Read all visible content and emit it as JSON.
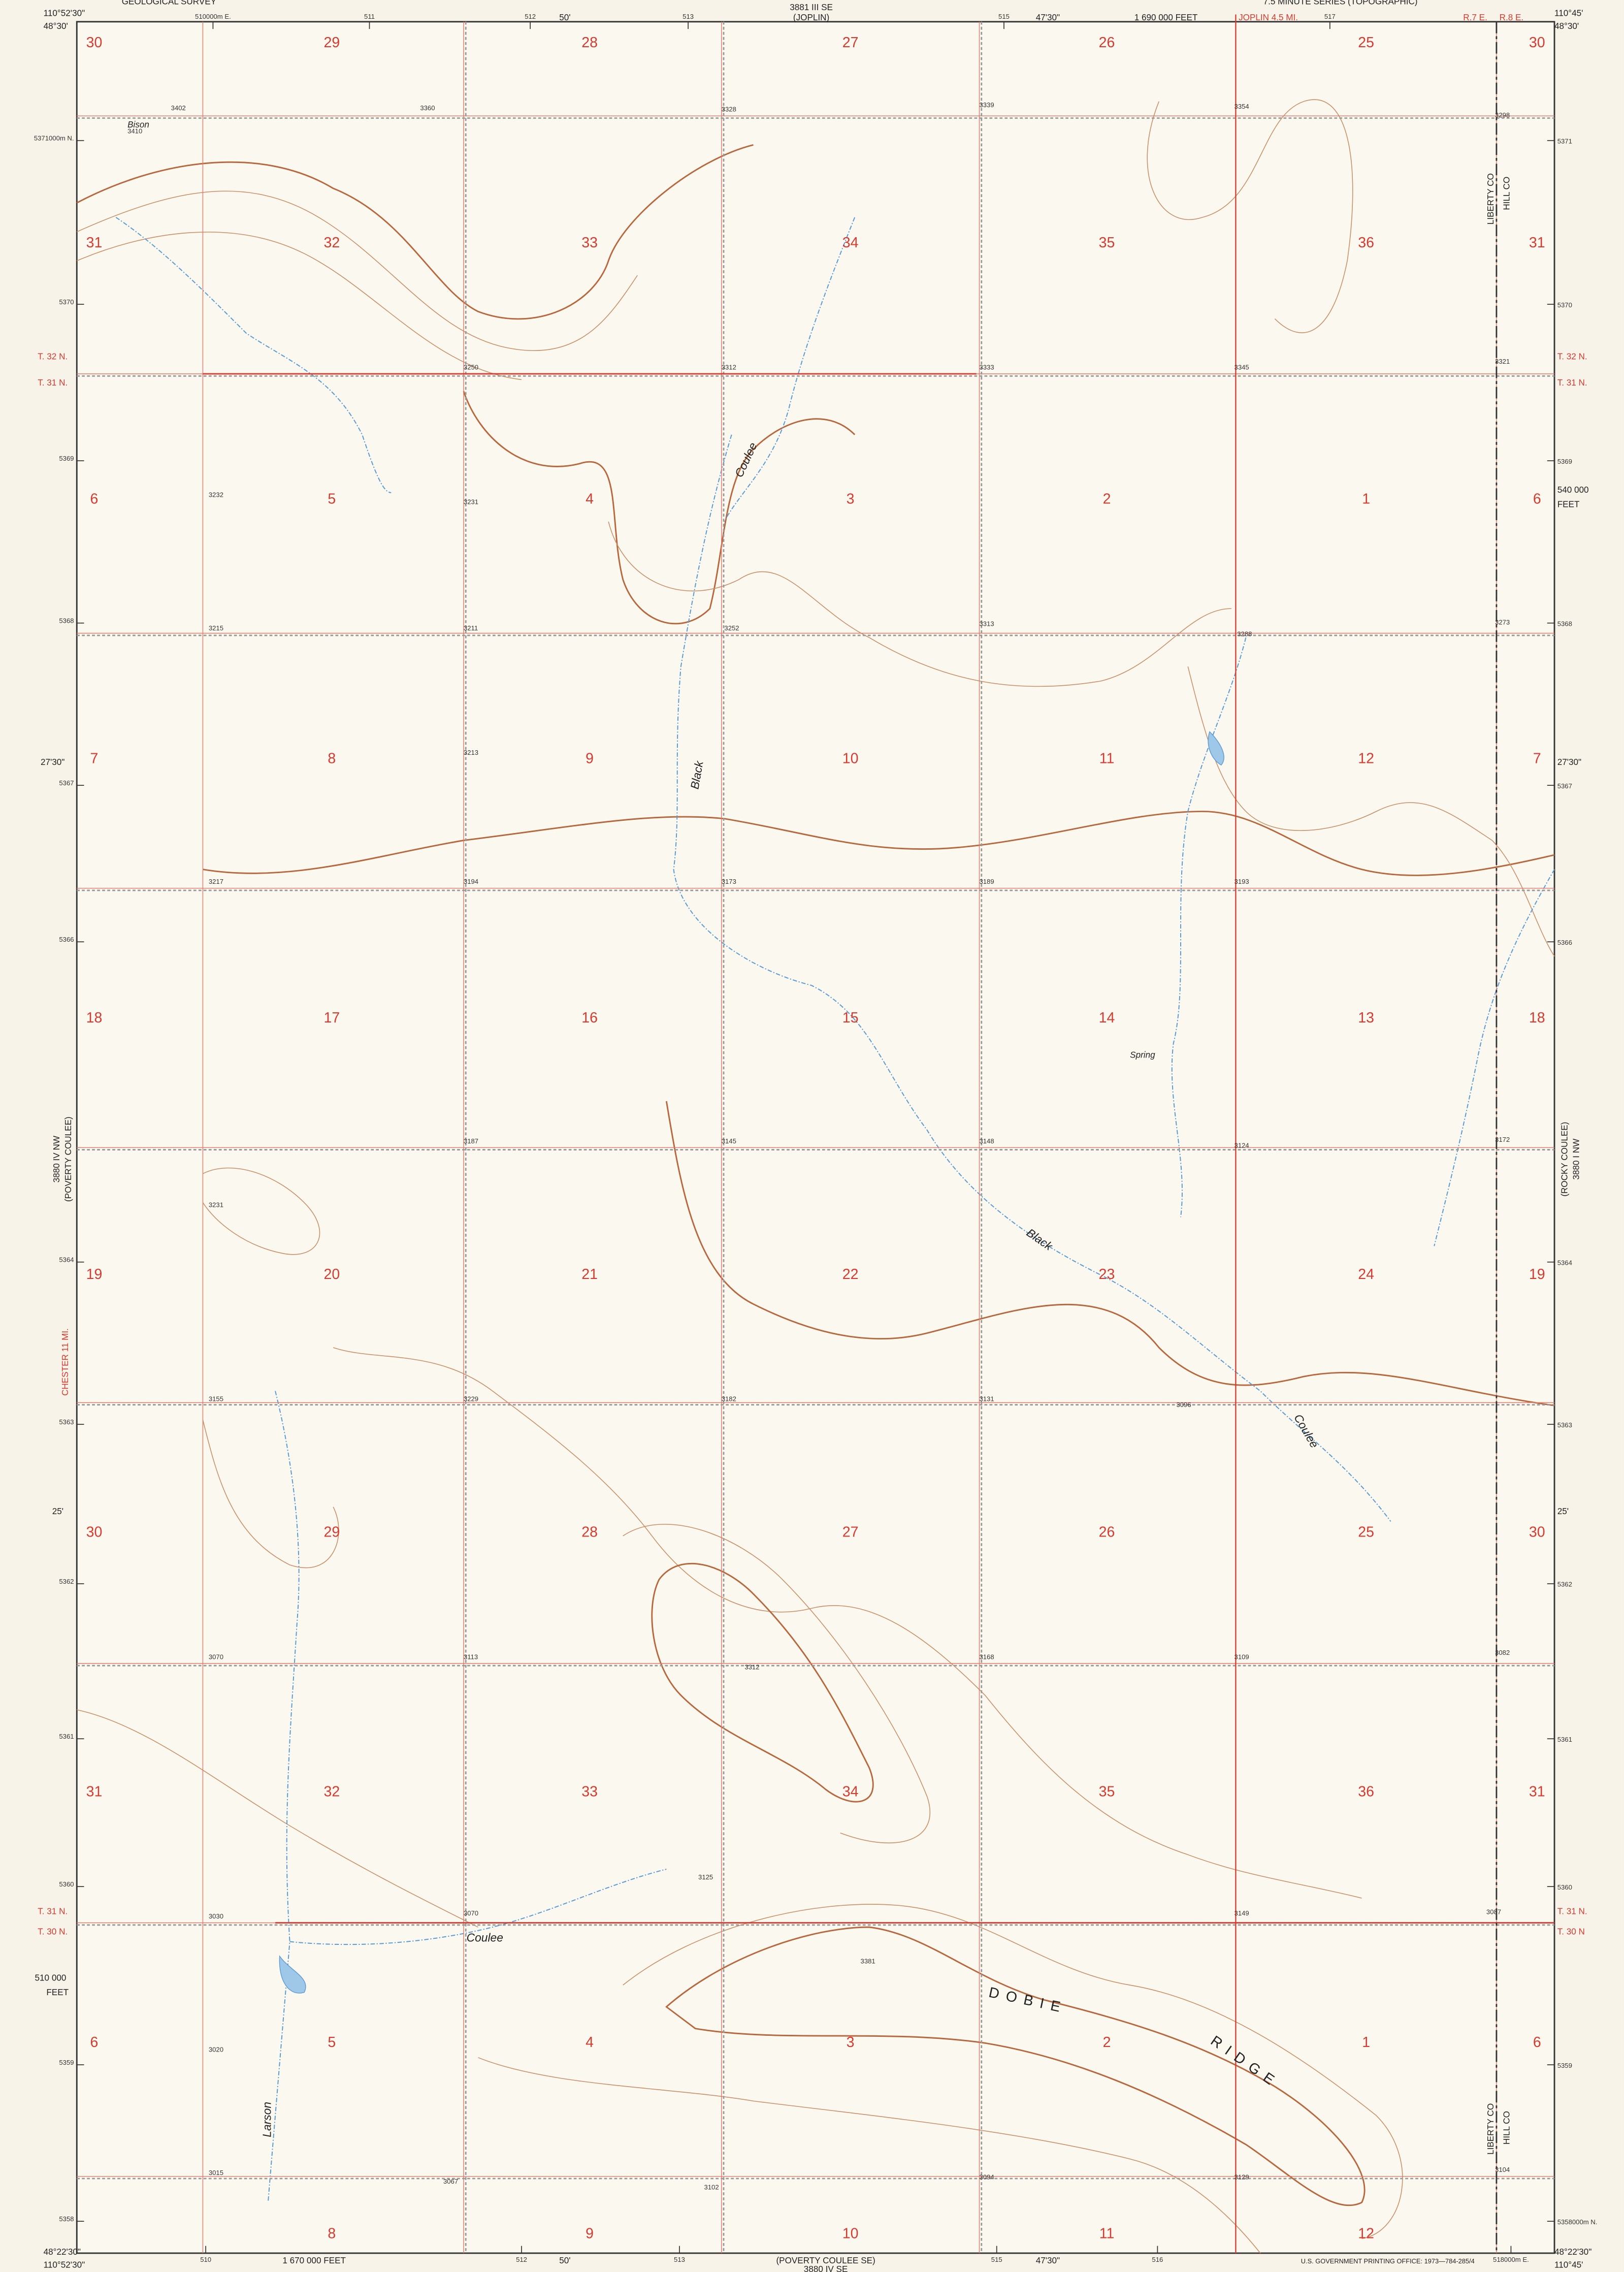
{
  "header": {
    "agency": "GEOLOGICAL SURVEY",
    "series": "7.5 MINUTE SERIES (TOPOGRAPHIC)"
  },
  "corners": {
    "nw_lon": "110°52'30\"",
    "nw_lat": "48°30'",
    "ne_lon": "110°45'",
    "ne_lat": "48°30'",
    "sw_lon": "110°52'30\"",
    "sw_lat": "48°22'30\"",
    "se_lon": "110°45'",
    "se_lat": "48°22'30\""
  },
  "margins": {
    "top_adjoining": "3881 III SE",
    "top_adjoining_name": "(JOPLIN)",
    "top_minute": "47'30\"",
    "top_mid_minute": "50'",
    "top_feet": "1 690 000 FEET",
    "top_road": "JOPLIN 4.5 MI.",
    "range_left": "R.7 E.",
    "range_right": "R.8 E.",
    "top_utm": [
      "510000m E.",
      "511",
      "512",
      "513",
      "515",
      "517"
    ],
    "bottom_utm": [
      "510",
      "512",
      "513",
      "515",
      "516",
      "518000m E."
    ],
    "bottom_minute": "47'30\"",
    "bottom_mid_minute": "50'",
    "bottom_feet": "1 670 000 FEET",
    "bottom_adjoining_name": "(POVERTY COULEE SE)",
    "bottom_adjoining": "3880 IV SE",
    "printing": "U.S. GOVERNMENT PRINTING OFFICE: 1973—784-285/4",
    "left_utm": [
      "5371000m N.",
      "5370",
      "5369",
      "5368",
      "5367",
      "5366",
      "5364",
      "5363",
      "5362",
      "5361",
      "5360",
      "5359",
      "5358"
    ],
    "right_utm": [
      "5371",
      "5370",
      "5369",
      "5368",
      "5367",
      "5366",
      "5364",
      "5363",
      "5362",
      "5361",
      "5360",
      "5359",
      "5358000m N."
    ],
    "left_lat_mid": "27'30\"",
    "left_lat_low": "25'",
    "right_lat_mid": "27'30\"",
    "right_lat_low": "25'",
    "right_feet": "540 000",
    "right_feet_unit": "FEET",
    "left_feet": "510 000",
    "left_feet_unit": "FEET",
    "left_adjoining": "3880 IV NW",
    "left_adjoining_name": "(POVERTY COULEE)",
    "right_adjoining": "3880 I NW",
    "right_adjoining_name": "(ROCKY COULEE)",
    "left_road": "CHESTER 11 MI.",
    "townships_left": [
      "T. 32 N.",
      "T. 31 N.",
      "T. 31 N.",
      "T. 30 N."
    ],
    "townships_right": [
      "T. 32 N.",
      "T. 31 N.",
      "T. 31 N.",
      "T. 30 N"
    ]
  },
  "places": {
    "bison": "Bison",
    "black_1": "Black",
    "coulee_1": "Coulee",
    "black_2": "Black",
    "coulee_2": "Black",
    "black_3": "Black",
    "coulee_3": "Coulee",
    "coulee_4": "Coulee",
    "spring": "Spring",
    "dobie": "D O B I E",
    "ridge": "R I D G E",
    "larson": "Larson",
    "liberty_top": "LIBERTY CO",
    "hill_top": "HILL CO",
    "liberty_bottom": "LIBERTY CO",
    "hill_bottom": "HILL CO"
  },
  "sections": [
    [
      "30",
      "29",
      "28",
      "27",
      "26",
      "25",
      "30"
    ],
    [
      "31",
      "32",
      "33",
      "34",
      "35",
      "36",
      "31"
    ],
    [
      "6",
      "5",
      "4",
      "3",
      "2",
      "1",
      "6"
    ],
    [
      "7",
      "8",
      "9",
      "10",
      "11",
      "12",
      "7"
    ],
    [
      "18",
      "17",
      "16",
      "15",
      "14",
      "13",
      "18"
    ],
    [
      "19",
      "20",
      "21",
      "22",
      "23",
      "24",
      "19"
    ],
    [
      "30",
      "29",
      "28",
      "27",
      "26",
      "25",
      "30"
    ],
    [
      "31",
      "32",
      "33",
      "34",
      "35",
      "36",
      "31"
    ],
    [
      "6",
      "5",
      "4",
      "3",
      "2",
      "1",
      "6"
    ],
    [
      "8",
      "9",
      "10",
      "11",
      "12"
    ]
  ],
  "elevations": [
    "3410",
    "3402",
    "3360",
    "3328",
    "3339",
    "3354",
    "3298",
    "3250",
    "3312",
    "3333",
    "3345",
    "3321",
    "3232",
    "3231",
    "3215",
    "3211",
    "3252",
    "3313",
    "3288",
    "3273",
    "3213",
    "3217",
    "3194",
    "3173",
    "3189",
    "3193",
    "3187",
    "3145",
    "3148",
    "3124",
    "3172",
    "3231",
    "3155",
    "3229",
    "3182",
    "3131",
    "3096",
    "3070",
    "3113",
    "3312",
    "3168",
    "3109",
    "3082",
    "3125",
    "3070",
    "3030",
    "3149",
    "3087",
    "3381",
    "3020",
    "3015",
    "3067",
    "3102",
    "3094",
    "3129",
    "3104"
  ]
}
